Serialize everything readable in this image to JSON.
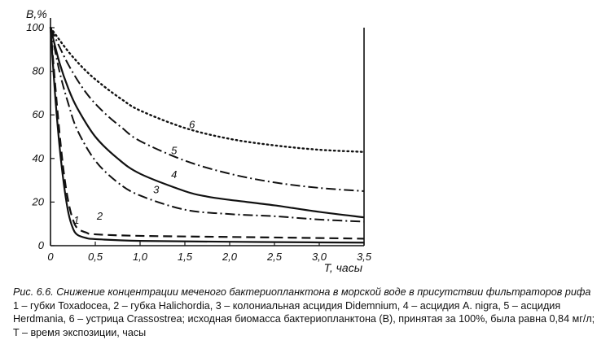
{
  "chart_data": {
    "type": "line",
    "ylabel": "B,%",
    "xlabel": "T, часы",
    "xlim": [
      0,
      3.5
    ],
    "ylim": [
      0,
      100
    ],
    "x_ticks": [
      "0",
      "0,5",
      "1,0",
      "1,5",
      "2,0",
      "2,5",
      "3,0",
      "3,5"
    ],
    "y_ticks": [
      "0",
      "20",
      "40",
      "60",
      "80",
      "100"
    ],
    "grid": false,
    "series": [
      {
        "name": "1",
        "style": "solid",
        "points": [
          [
            0,
            100
          ],
          [
            0.05,
            70
          ],
          [
            0.1,
            46
          ],
          [
            0.15,
            28
          ],
          [
            0.2,
            15
          ],
          [
            0.25,
            8
          ],
          [
            0.3,
            5
          ],
          [
            0.4,
            3.5
          ],
          [
            0.5,
            3
          ],
          [
            1.0,
            2.2
          ],
          [
            2.0,
            1.8
          ],
          [
            3.0,
            1.5
          ],
          [
            3.5,
            1.4
          ]
        ]
      },
      {
        "name": "2",
        "style": "dashed",
        "points": [
          [
            0,
            100
          ],
          [
            0.05,
            75
          ],
          [
            0.1,
            52
          ],
          [
            0.15,
            33
          ],
          [
            0.2,
            20
          ],
          [
            0.25,
            12
          ],
          [
            0.3,
            8
          ],
          [
            0.4,
            6
          ],
          [
            0.5,
            5.2
          ],
          [
            1.0,
            4.5
          ],
          [
            2.0,
            4
          ],
          [
            3.0,
            3.5
          ],
          [
            3.5,
            3.2
          ]
        ]
      },
      {
        "name": "3",
        "style": "dash-dot",
        "points": [
          [
            0,
            100
          ],
          [
            0.1,
            80
          ],
          [
            0.2,
            65
          ],
          [
            0.3,
            53
          ],
          [
            0.5,
            39
          ],
          [
            0.75,
            29
          ],
          [
            1.0,
            23
          ],
          [
            1.5,
            16.5
          ],
          [
            2.0,
            14.5
          ],
          [
            2.5,
            13.5
          ],
          [
            3.0,
            12
          ],
          [
            3.5,
            11
          ]
        ]
      },
      {
        "name": "4",
        "style": "solid",
        "points": [
          [
            0,
            100
          ],
          [
            0.1,
            84
          ],
          [
            0.2,
            72
          ],
          [
            0.3,
            63
          ],
          [
            0.5,
            50
          ],
          [
            0.75,
            40
          ],
          [
            1.0,
            33
          ],
          [
            1.5,
            25
          ],
          [
            1.75,
            22.5
          ],
          [
            2.0,
            21
          ],
          [
            2.5,
            18.5
          ],
          [
            3.0,
            15.5
          ],
          [
            3.5,
            13
          ]
        ]
      },
      {
        "name": "5",
        "style": "dash-dot",
        "points": [
          [
            0,
            100
          ],
          [
            0.2,
            83
          ],
          [
            0.4,
            70
          ],
          [
            0.6,
            61
          ],
          [
            0.8,
            54
          ],
          [
            1.0,
            48
          ],
          [
            1.5,
            39
          ],
          [
            2.0,
            33
          ],
          [
            2.5,
            29
          ],
          [
            3.0,
            26.5
          ],
          [
            3.5,
            25
          ]
        ]
      },
      {
        "name": "6",
        "style": "dotted",
        "points": [
          [
            0,
            100
          ],
          [
            0.2,
            89
          ],
          [
            0.4,
            80
          ],
          [
            0.6,
            73
          ],
          [
            0.8,
            67
          ],
          [
            1.0,
            62
          ],
          [
            1.5,
            54
          ],
          [
            2.0,
            49
          ],
          [
            2.5,
            46
          ],
          [
            3.0,
            44
          ],
          [
            3.5,
            43
          ]
        ]
      }
    ]
  },
  "caption": {
    "title": "Рис. 6.6. Снижение концентрации меченого бактериопланктона в морской воде в присутствии фильтраторов рифа",
    "legend": "1 – губки Toxadocea, 2 – губка Halichordia, 3 – колониальная асцидия Didemnium, 4 – асцидия A. nigra, 5 – асцидия Herdmania, 6 – устрица Crassostrea; исходная биомасса бактериопланктона (B), принятая за 100%, была равна 0,84 мг/л; T – время экспозиции, часы"
  }
}
